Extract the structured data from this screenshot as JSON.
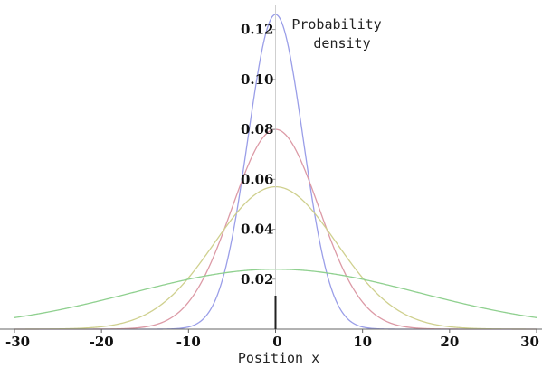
{
  "chart_data": {
    "type": "line",
    "xlabel": "Position x",
    "ylabel_lines": [
      "Probability",
      "density"
    ],
    "xlim": [
      -30,
      30
    ],
    "ylim": [
      0,
      0.13
    ],
    "x_ticks": [
      -30,
      -20,
      -10,
      0,
      10,
      20,
      30
    ],
    "x_tick_labels": [
      "-30",
      "-20",
      "-10",
      "0",
      "10",
      "20",
      "30"
    ],
    "y_ticks": [
      0.02,
      0.04,
      0.06,
      0.08,
      0.1,
      0.12
    ],
    "y_tick_labels": [
      "0.02",
      "0.04",
      "0.06",
      "0.08",
      "0.10",
      "0.12"
    ],
    "grid": false,
    "series": [
      {
        "peak": 0.126,
        "sigma": 3.17,
        "color": "#9a9ee8"
      },
      {
        "peak": 0.08,
        "sigma": 5.0,
        "color": "#dc9aa6"
      },
      {
        "peak": 0.057,
        "sigma": 7.0,
        "color": "#cfd08e"
      },
      {
        "peak": 0.024,
        "sigma": 16.5,
        "color": "#8fd08f"
      }
    ]
  }
}
